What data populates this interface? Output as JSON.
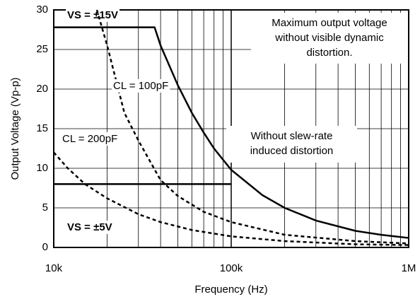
{
  "chart_data": {
    "type": "line",
    "x_label": "Frequency (Hz)",
    "y_label": "Output Voltage (Vp-p)",
    "log_x": true,
    "grid": true,
    "xlim": [
      10000,
      1000000
    ],
    "ylim": [
      0,
      30
    ],
    "xticks": [
      {
        "value": 10000,
        "label": "10k"
      },
      {
        "value": 100000,
        "label": "100k"
      },
      {
        "value": 1000000,
        "label": "1M"
      }
    ],
    "minor_xticks": [
      20000,
      30000,
      40000,
      50000,
      60000,
      70000,
      80000,
      90000,
      200000,
      300000,
      400000,
      500000,
      600000,
      700000,
      800000,
      900000
    ],
    "yticks": [
      0,
      5,
      10,
      15,
      20,
      25,
      30
    ],
    "series": [
      {
        "name": "VS = ±15V",
        "color": "#000000",
        "dash": false,
        "x": [
          10000,
          37000,
          40000,
          50000,
          60000,
          70000,
          80000,
          100000,
          150000,
          200000,
          300000,
          500000,
          700000,
          1000000
        ],
        "values": [
          27.8,
          27.8,
          25.5,
          20.5,
          17,
          14.5,
          12.5,
          9.8,
          6.6,
          5,
          3.4,
          2.1,
          1.6,
          1.2
        ]
      },
      {
        "name": "VS = ±5V",
        "color": "#000000",
        "dash": false,
        "x": [
          10000,
          100000
        ],
        "values": [
          8,
          8
        ]
      },
      {
        "name": "CL = 100pF",
        "color": "#000000",
        "dash": true,
        "x": [
          17500,
          20000,
          25000,
          30000,
          40000,
          50000,
          70000,
          100000,
          200000,
          500000,
          1000000
        ],
        "values": [
          30,
          25.5,
          17,
          13.5,
          8.5,
          6.5,
          4.5,
          3.2,
          1.6,
          0.8,
          0.5
        ]
      },
      {
        "name": "CL = 200pF",
        "color": "#000000",
        "dash": true,
        "x": [
          10000,
          12000,
          15000,
          20000,
          30000,
          40000,
          60000,
          100000,
          200000,
          500000,
          1000000
        ],
        "values": [
          12,
          10,
          8,
          6.2,
          4.2,
          3.2,
          2.2,
          1.4,
          0.8,
          0.4,
          0.3
        ]
      }
    ],
    "annotations": [
      {
        "lines": [
          "Maximum output voltage",
          "without visible dynamic",
          "distortion."
        ]
      },
      {
        "lines": [
          "Without slew-rate",
          "induced distortion"
        ]
      }
    ]
  }
}
